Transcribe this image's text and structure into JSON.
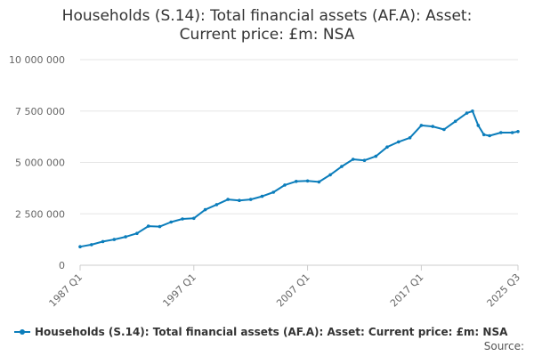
{
  "title_line1": "Households (S.14): Total financial assets (AF.A): Asset:",
  "title_line2": "Current price: £m: NSA",
  "legend_label": "Households (S.14): Total financial assets (AF.A): Asset: Current price: £m: NSA",
  "source_label": "Source:",
  "colors": {
    "series": "#0b7dbb",
    "grid": "#e6e6e6",
    "axis_text": "#666666"
  },
  "chart_data": {
    "type": "line",
    "title": "Households (S.14): Total financial assets (AF.A): Asset: Current price: £m: NSA",
    "xlabel": "",
    "ylabel": "",
    "ylim": [
      0,
      10000000
    ],
    "yticks": [
      0,
      2500000,
      5000000,
      7500000,
      10000000
    ],
    "ytick_labels": [
      "0",
      "2 500 000",
      "5 000 000",
      "7 500 000",
      "10 000 000"
    ],
    "xticks": [
      "1987 Q1",
      "1997 Q1",
      "2007 Q1",
      "2017 Q1",
      "2025 Q3"
    ],
    "grid": "horizontal",
    "legend": "bottom",
    "series": [
      {
        "name": "Households (S.14): Total financial assets (AF.A): Asset: Current price: £m: NSA",
        "x": [
          "1987 Q1",
          "1988 Q1",
          "1989 Q1",
          "1990 Q1",
          "1991 Q1",
          "1992 Q1",
          "1993 Q1",
          "1994 Q1",
          "1995 Q1",
          "1996 Q1",
          "1997 Q1",
          "1998 Q1",
          "1999 Q1",
          "2000 Q1",
          "2001 Q1",
          "2002 Q1",
          "2003 Q1",
          "2004 Q1",
          "2005 Q1",
          "2006 Q1",
          "2007 Q1",
          "2008 Q1",
          "2009 Q1",
          "2010 Q1",
          "2011 Q1",
          "2012 Q1",
          "2013 Q1",
          "2014 Q1",
          "2015 Q1",
          "2016 Q1",
          "2017 Q1",
          "2018 Q1",
          "2019 Q1",
          "2020 Q1",
          "2021 Q1",
          "2021 Q3",
          "2022 Q1",
          "2022 Q3",
          "2023 Q1",
          "2024 Q1",
          "2025 Q1",
          "2025 Q3"
        ],
        "values": [
          900000,
          1000000,
          1150000,
          1250000,
          1380000,
          1550000,
          1900000,
          1880000,
          2100000,
          2250000,
          2280000,
          2700000,
          2950000,
          3200000,
          3150000,
          3200000,
          3350000,
          3550000,
          3900000,
          4080000,
          4100000,
          4050000,
          4400000,
          4800000,
          5150000,
          5100000,
          5300000,
          5750000,
          6000000,
          6200000,
          6800000,
          6750000,
          6600000,
          7000000,
          7400000,
          7500000,
          6800000,
          6350000,
          6300000,
          6450000,
          6450000,
          6500000
        ]
      }
    ]
  }
}
